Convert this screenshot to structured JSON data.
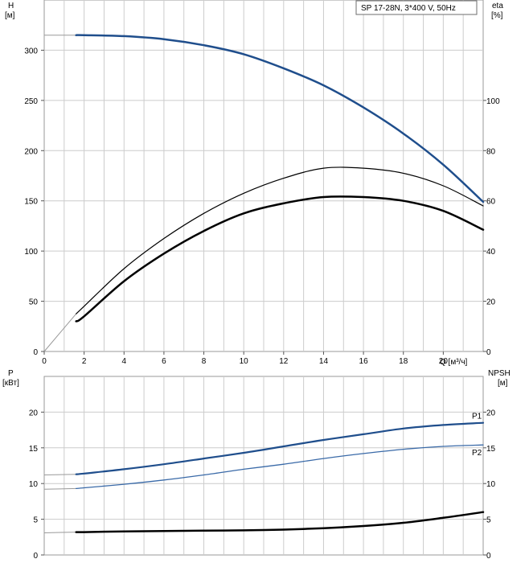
{
  "legend_box": "SP 17-28N, 3*400 V, 50Hz",
  "colors": {
    "head_curve": "#1f4e8c",
    "eta_curve": "#000000",
    "p1_curve": "#1f4e8c",
    "p2_curve": "#3a6aa8",
    "npsh_curve": "#000000",
    "grid": "#cccccc",
    "extrapolation": "#999999"
  },
  "chart_data": [
    {
      "type": "line",
      "title": "SP 17-28N, 3*400 V, 50Hz",
      "xlabel": "Q [м³/ч]",
      "ylabel": "H [м]",
      "ylabel_right": "eta [%]",
      "xlim": [
        0,
        22
      ],
      "ylim": [
        0,
        350
      ],
      "ylim_right": [
        0,
        140
      ],
      "xticks": [
        0,
        2,
        4,
        6,
        8,
        10,
        12,
        14,
        16,
        18,
        20
      ],
      "yticks": [
        0,
        50,
        100,
        150,
        200,
        250,
        300
      ],
      "yticks_right": [
        0,
        20,
        40,
        60,
        80,
        100
      ],
      "grid": true,
      "series": [
        {
          "axis": "left",
          "x": [
            0,
            1.6,
            2,
            4,
            6,
            8,
            10,
            12,
            14,
            16,
            18,
            20,
            22
          ],
          "values": [
            315,
            315,
            315,
            314,
            311,
            305,
            296,
            282,
            265,
            243,
            217,
            186,
            149
          ]
        },
        {
          "axis": "right",
          "x": [
            0,
            1.6,
            2,
            4,
            6,
            8,
            10,
            12,
            14,
            16,
            18,
            20,
            22
          ],
          "values": [
            0,
            15,
            18,
            33,
            45,
            55,
            63,
            69,
            73,
            73,
            71,
            66,
            58
          ]
        },
        {
          "axis": "right",
          "x": [
            1.6,
            2,
            4,
            6,
            8,
            10,
            12,
            14,
            16,
            18,
            20,
            22
          ],
          "values": [
            12,
            14,
            28,
            39,
            48,
            55,
            59,
            61.5,
            61.5,
            60,
            56,
            48.5
          ]
        }
      ]
    },
    {
      "type": "line",
      "xlabel": "",
      "ylabel": "P [кВт]",
      "ylabel_right": "NPSH [м]",
      "xlim": [
        0,
        22
      ],
      "ylim": [
        0,
        25
      ],
      "ylim_right": [
        0,
        25
      ],
      "yticks": [
        0,
        5,
        10,
        15,
        20
      ],
      "yticks_right": [
        0,
        5,
        10,
        15,
        20
      ],
      "grid": true,
      "series": [
        {
          "name": "P1",
          "axis": "left",
          "x": [
            0,
            1.6,
            2,
            4,
            6,
            8,
            10,
            12,
            14,
            16,
            18,
            20,
            22
          ],
          "values": [
            11.2,
            11.3,
            11.4,
            12.0,
            12.7,
            13.5,
            14.3,
            15.2,
            16.1,
            16.9,
            17.7,
            18.2,
            18.5
          ]
        },
        {
          "name": "P2",
          "axis": "left",
          "x": [
            0,
            1.6,
            2,
            4,
            6,
            8,
            10,
            12,
            14,
            16,
            18,
            20,
            22
          ],
          "values": [
            9.2,
            9.3,
            9.4,
            9.9,
            10.5,
            11.2,
            12.0,
            12.7,
            13.5,
            14.2,
            14.8,
            15.2,
            15.4
          ]
        },
        {
          "axis": "right",
          "x": [
            0,
            1.6,
            2,
            4,
            6,
            8,
            10,
            12,
            14,
            16,
            18,
            20,
            22
          ],
          "values": [
            3.1,
            3.2,
            3.2,
            3.3,
            3.35,
            3.4,
            3.45,
            3.55,
            3.75,
            4.05,
            4.5,
            5.2,
            6.0
          ]
        }
      ]
    }
  ]
}
